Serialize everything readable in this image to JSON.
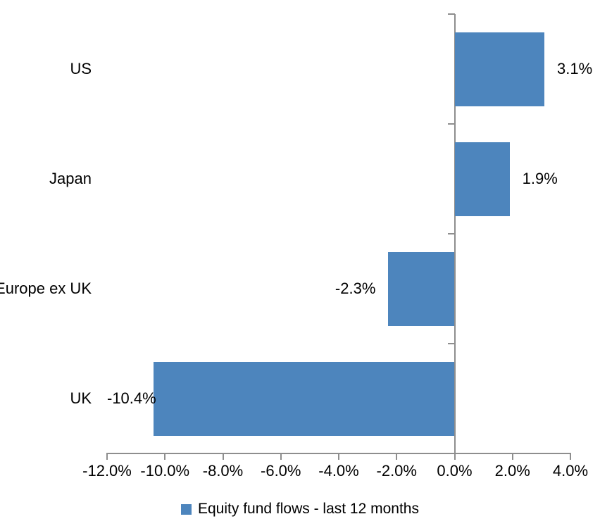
{
  "chart_data": {
    "type": "bar",
    "orientation": "horizontal",
    "title": "",
    "categories": [
      "US",
      "Japan",
      "Europe ex UK",
      "UK"
    ],
    "values": [
      3.1,
      1.9,
      -2.3,
      -10.4
    ],
    "value_labels": [
      "3.1%",
      "1.9%",
      "-2.3%",
      "-10.4%"
    ],
    "series_name": "Equity fund flows - last 12 months",
    "xlim": [
      -12,
      4
    ],
    "x_ticks": [
      -12,
      -10,
      -8,
      -6,
      -4,
      -2,
      0,
      2,
      4
    ],
    "x_tick_labels": [
      "-12.0%",
      "-10.0%",
      "-8.0%",
      "-6.0%",
      "-4.0%",
      "-2.0%",
      "0.0%",
      "2.0%",
      "4.0%"
    ],
    "grid": false,
    "legend_position": "bottom",
    "data_label_position": "outside-end",
    "colors": {
      "bar": "#4D85BD",
      "axis": "#8E8E8E",
      "text": "#000000",
      "background": "#ffffff"
    }
  },
  "legend": {
    "label": "Equity fund flows - last 12 months"
  }
}
